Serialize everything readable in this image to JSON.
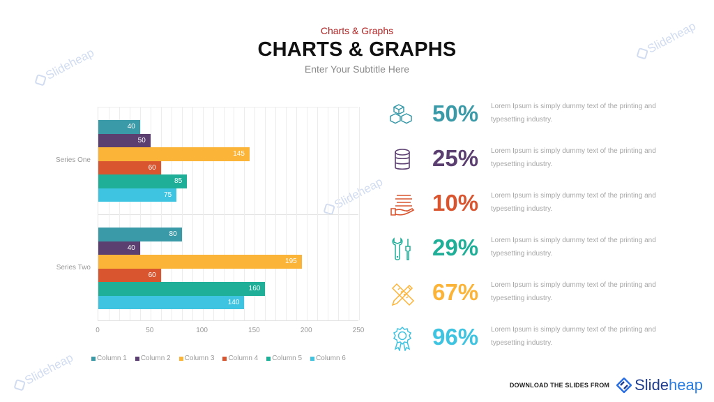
{
  "header": {
    "kicker": "Charts & Graphs",
    "title": "CHARTS & GRAPHS",
    "subtitle": "Enter Your Subtitle Here"
  },
  "watermark": {
    "text": "Slideheap"
  },
  "chart_data": {
    "type": "bar",
    "orientation": "horizontal",
    "title": "",
    "xlabel": "",
    "ylabel": "",
    "categories": [
      "Series One",
      "Series Two"
    ],
    "series": [
      {
        "name": "Column 1",
        "color": "#3a9aa8",
        "values": [
          40,
          80
        ]
      },
      {
        "name": "Column 2",
        "color": "#5b3f70",
        "values": [
          50,
          40
        ]
      },
      {
        "name": "Column 3",
        "color": "#fbb437",
        "values": [
          145,
          195
        ]
      },
      {
        "name": "Column 4",
        "color": "#d9552f",
        "values": [
          60,
          60
        ]
      },
      {
        "name": "Column 5",
        "color": "#1fae98",
        "values": [
          85,
          160
        ]
      },
      {
        "name": "Column 6",
        "color": "#3ec3e0",
        "values": [
          75,
          140
        ]
      }
    ],
    "xlim": [
      0,
      250
    ],
    "x_ticks": [
      "0",
      "50",
      "100",
      "150",
      "200",
      "250"
    ],
    "grid": true,
    "grid_step": 10,
    "data_labels": true,
    "legend_position": "bottom"
  },
  "stats": [
    {
      "icon": "cubes-icon",
      "value": "50%",
      "color": "#3a9aa8",
      "desc_line1": "Lorem Ipsum is simply dummy text of the printing and",
      "desc_line2": "typesetting industry."
    },
    {
      "icon": "database-icon",
      "value": "25%",
      "color": "#5b3f70",
      "desc_line1": "Lorem Ipsum is simply dummy text of the printing and",
      "desc_line2": "typesetting industry."
    },
    {
      "icon": "hand-holding-layers-icon",
      "value": "10%",
      "color": "#d9552f",
      "desc_line1": "Lorem Ipsum is simply dummy text of the printing and",
      "desc_line2": "typesetting industry."
    },
    {
      "icon": "wrench-screwdriver-icon",
      "value": "29%",
      "color": "#1fae98",
      "desc_line1": "Lorem Ipsum is simply dummy text of the printing and",
      "desc_line2": "typesetting industry."
    },
    {
      "icon": "pencil-ruler-icon",
      "value": "67%",
      "color": "#fbb437",
      "desc_line1": "Lorem Ipsum is simply dummy text of the printing and",
      "desc_line2": "typesetting industry."
    },
    {
      "icon": "award-ribbon-icon",
      "value": "96%",
      "color": "#3ec3e0",
      "desc_line1": "Lorem Ipsum is simply dummy text of the printing and",
      "desc_line2": "typesetting industry."
    }
  ],
  "footer": {
    "text": "DOWNLOAD THE SLIDES FROM",
    "brand_part1": "Slide",
    "brand_part2": "heap"
  }
}
